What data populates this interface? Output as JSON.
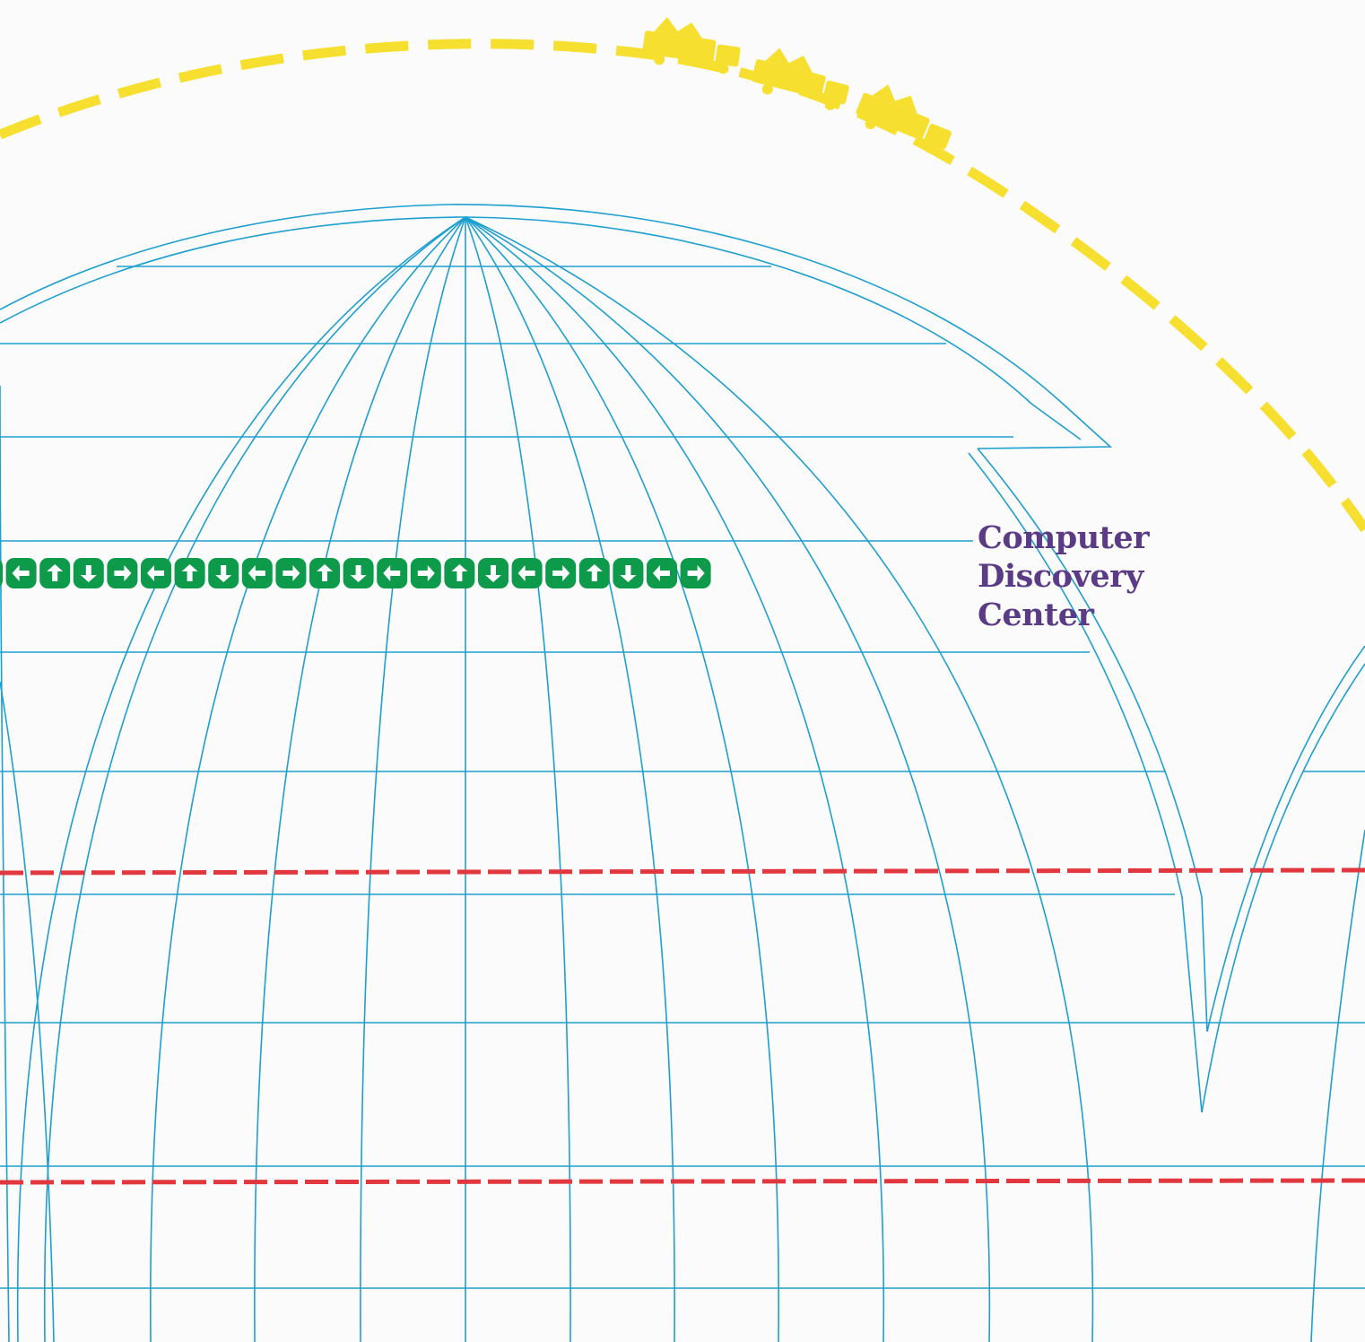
{
  "title": {
    "line1": "Computer",
    "line2": "Discovery",
    "line3": "Center"
  },
  "colors": {
    "grid": "#1e9fcf",
    "dash_yellow": "#f6df2f",
    "dash_red": "#e0383e",
    "arrow_green": "#0e9a4b",
    "title_purple": "#5b3a86",
    "background": "#fbfbfb"
  },
  "arrow_row": {
    "sequence": [
      "right",
      "left",
      "up",
      "down",
      "right",
      "left",
      "up",
      "down",
      "left",
      "right",
      "up",
      "down",
      "left",
      "right",
      "up",
      "down",
      "left",
      "right",
      "up",
      "down",
      "left",
      "right"
    ],
    "icon": "arrow-block-icon"
  },
  "trucks": {
    "icon": "truck-icon",
    "count": 3
  }
}
